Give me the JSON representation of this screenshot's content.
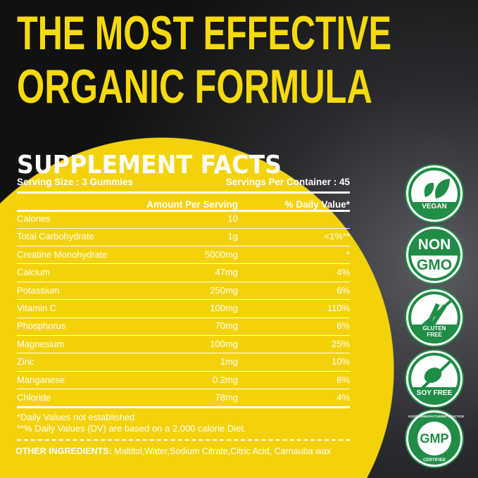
{
  "headline": {
    "line1": "THE MOST EFFECTIVE",
    "line2": "ORGANIC FORMULA"
  },
  "facts": {
    "title": "SUPPLEMENT FACTS",
    "serving_size": "Serving Size : 3 Gummies",
    "servings_per_container": "Servings Per Container : 45",
    "columns": {
      "amount": "Amount Per Serving",
      "dv": "% Daily Value*"
    },
    "rows": [
      {
        "name": "Calories",
        "amount": "10",
        "dv": ""
      },
      {
        "name": "Total Carbohydrate",
        "amount": "1g",
        "dv": "<1%**"
      },
      {
        "name": "Creatine Monohydrate",
        "amount": "5000mg",
        "dv": "*"
      },
      {
        "name": "Calcium",
        "amount": "47mg",
        "dv": "4%"
      },
      {
        "name": "Potassium",
        "amount": "250mg",
        "dv": "6%"
      },
      {
        "name": "Vitamin C",
        "amount": "100mg",
        "dv": "110%"
      },
      {
        "name": "Phosphorus",
        "amount": "70mg",
        "dv": "6%"
      },
      {
        "name": "Magnesium",
        "amount": "100mg",
        "dv": "25%"
      },
      {
        "name": "Zinc",
        "amount": "1mg",
        "dv": "10%"
      },
      {
        "name": "Manganese",
        "amount": "0.2mg",
        "dv": "8%"
      },
      {
        "name": "Chloride",
        "amount": "78mg",
        "dv": "4%"
      }
    ],
    "note1": "*Daily Values not established",
    "note2": "**% Daily Values (DV) are based on a 2,000 calorie Diet.",
    "other_label": "OTHER INGREDIENTS:",
    "other_value": " Maltitol,Water,Sodium Citrate,Citric Acid, Carnauba wax"
  },
  "badges": {
    "vegan": "VEGAN",
    "non": "NON",
    "gmo": "GMO",
    "gluten1": "GLUTEN",
    "gluten2": "FREE",
    "soy": "SOY FREE",
    "gmp": "GMP",
    "gmp_top": "GOOD MANUFACTURING PRACTICE",
    "gmp_bottom": "CERTIFIED"
  },
  "colors": {
    "yellow": "#f4d20a",
    "green": "#1f8d45",
    "background": "#161719"
  }
}
